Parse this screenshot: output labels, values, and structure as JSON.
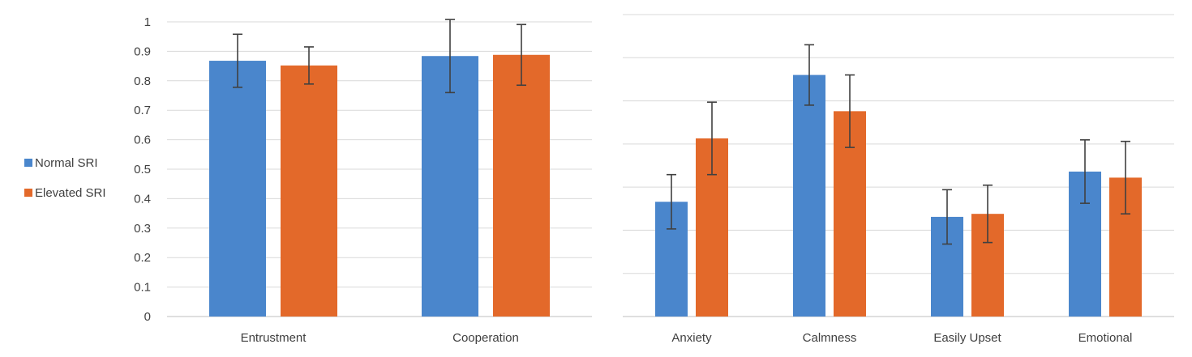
{
  "legend": {
    "items": [
      {
        "label": "Normal SRI",
        "color": "#4a86cc"
      },
      {
        "label": "Elevated SRI",
        "color": "#e3692a"
      }
    ]
  },
  "chart_data": [
    {
      "type": "bar",
      "categories": [
        "Entrustment",
        "Cooperation"
      ],
      "series": [
        {
          "name": "Normal SRI",
          "color": "#4a86cc",
          "values": [
            0.868,
            0.884
          ],
          "err": [
            0.09,
            0.124
          ]
        },
        {
          "name": "Elevated SRI",
          "color": "#e3692a",
          "values": [
            0.852,
            0.888
          ],
          "err": [
            0.063,
            0.103
          ]
        }
      ],
      "ylim": [
        0,
        1
      ],
      "yticks": [
        "0",
        "0.1",
        "0.2",
        "0.3",
        "0.4",
        "0.5",
        "0.6",
        "0.7",
        "0.8",
        "0.9",
        "1"
      ],
      "grid": true,
      "legend_position": "left"
    },
    {
      "type": "bar",
      "categories": [
        "Anxiety",
        "Calmness",
        "Easily Upset",
        "Emotional"
      ],
      "series": [
        {
          "name": "Normal SRI",
          "color": "#4a86cc",
          "values": [
            0.38,
            0.8,
            0.33,
            0.48
          ],
          "err": [
            0.09,
            0.1,
            0.09,
            0.105
          ]
        },
        {
          "name": "Elevated SRI",
          "color": "#e3692a",
          "values": [
            0.59,
            0.68,
            0.34,
            0.46
          ],
          "err": [
            0.12,
            0.12,
            0.095,
            0.12
          ]
        }
      ],
      "ylim": [
        0,
        1
      ],
      "yticks": [],
      "grid": true
    }
  ]
}
